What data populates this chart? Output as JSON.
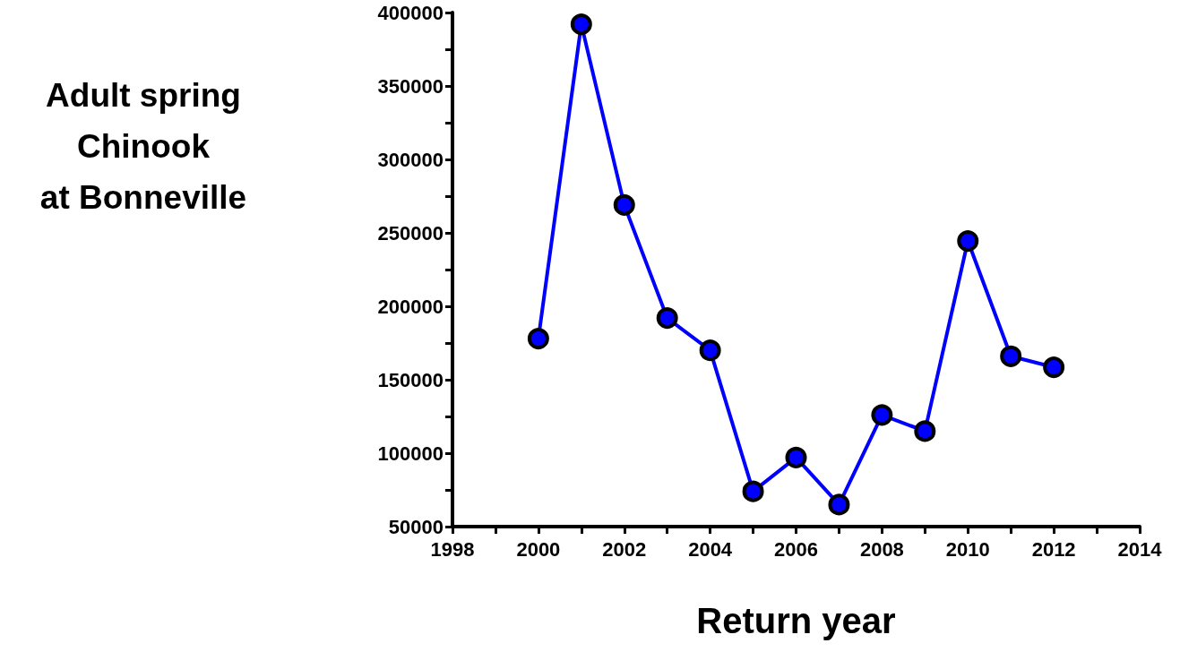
{
  "chart_data": {
    "type": "line",
    "ylabel": "Adult spring\nChinook\nat Bonneville",
    "xlabel": "Return year",
    "x": [
      2000,
      2001,
      2002,
      2003,
      2004,
      2005,
      2006,
      2007,
      2008,
      2009,
      2010,
      2011,
      2012
    ],
    "series": [
      {
        "color": "#0000ff",
        "values": [
          178000,
          392000,
          269000,
          192000,
          170000,
          74000,
          97000,
          65000,
          126000,
          115000,
          244500,
          166000,
          158500
        ]
      }
    ],
    "xlim": [
      1998,
      2014
    ],
    "xticks": [
      1998,
      {
        "value": 1999,
        "label": null
      },
      2000,
      {
        "value": 2001,
        "label": null
      },
      2002,
      {
        "value": 2003,
        "label": null
      },
      2004,
      {
        "value": 2005,
        "label": null
      },
      2006,
      {
        "value": 2007,
        "label": null
      },
      2008,
      {
        "value": 2009,
        "label": null
      },
      2010,
      {
        "value": 2011,
        "label": null
      },
      2012,
      {
        "value": 2013,
        "label": null
      },
      2014
    ],
    "ylim": [
      50000,
      400000
    ],
    "yticks": [
      50000,
      {
        "value": 75000,
        "label": null
      },
      100000,
      {
        "value": 125000,
        "label": null
      },
      150000,
      {
        "value": 175000,
        "label": null
      },
      200000,
      {
        "value": 225000,
        "label": null
      },
      250000,
      {
        "value": 275000,
        "label": null
      },
      300000,
      {
        "value": 325000,
        "label": null
      },
      350000,
      {
        "value": 375000,
        "label": null
      },
      400000
    ],
    "marker": "circle",
    "line_style": "solid",
    "grid": false
  }
}
